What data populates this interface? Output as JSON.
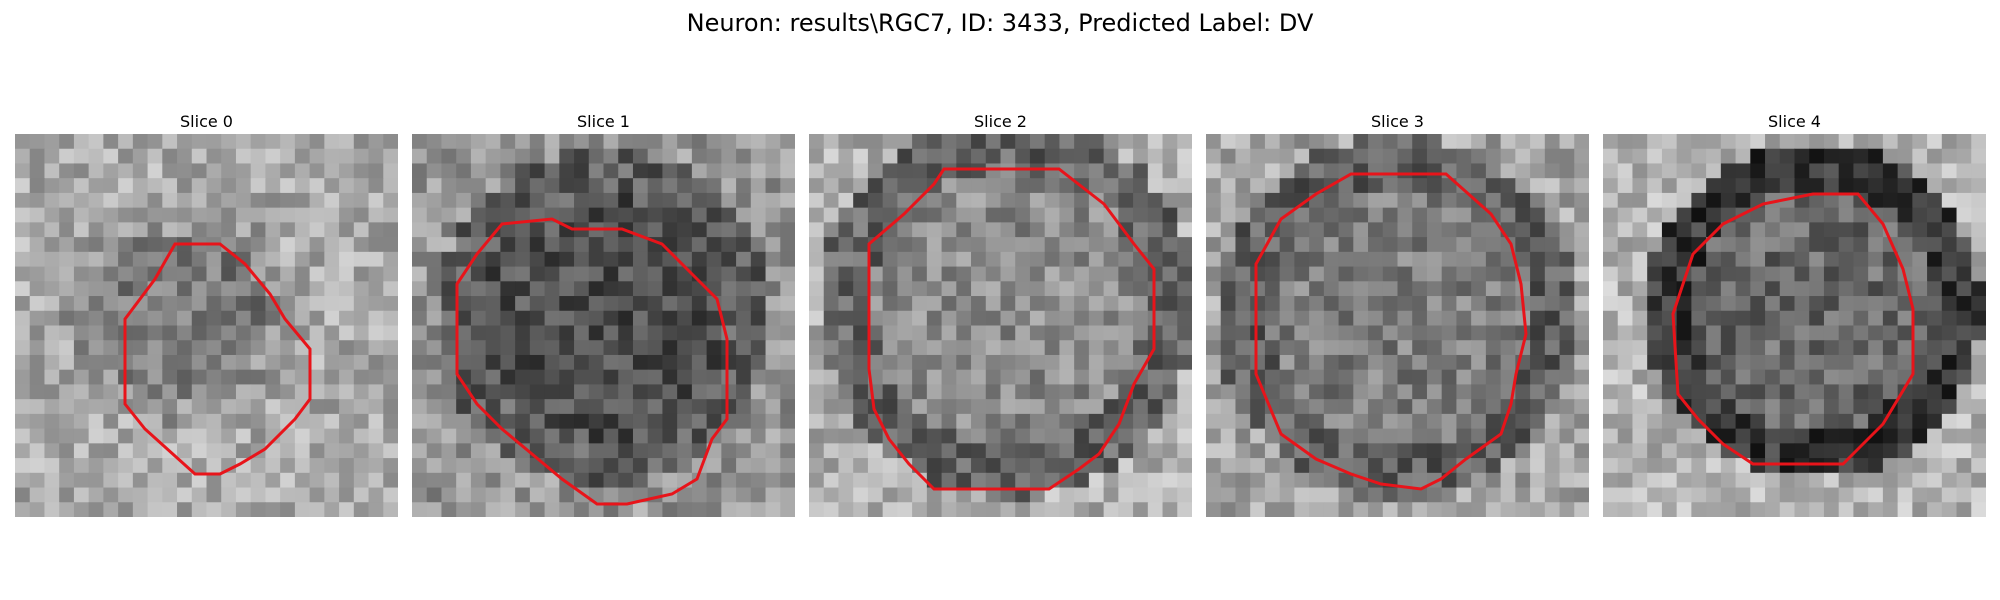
{
  "figure": {
    "title": "Neuron: results\\RGC7, ID: 3433, Predicted Label: DV"
  },
  "colors": {
    "contour": "#e8141a",
    "background": "#ffffff"
  },
  "panels": [
    {
      "title": "Slice 0"
    },
    {
      "title": "Slice 1"
    },
    {
      "title": "Slice 2"
    },
    {
      "title": "Slice 3"
    },
    {
      "title": "Slice 4"
    }
  ]
}
